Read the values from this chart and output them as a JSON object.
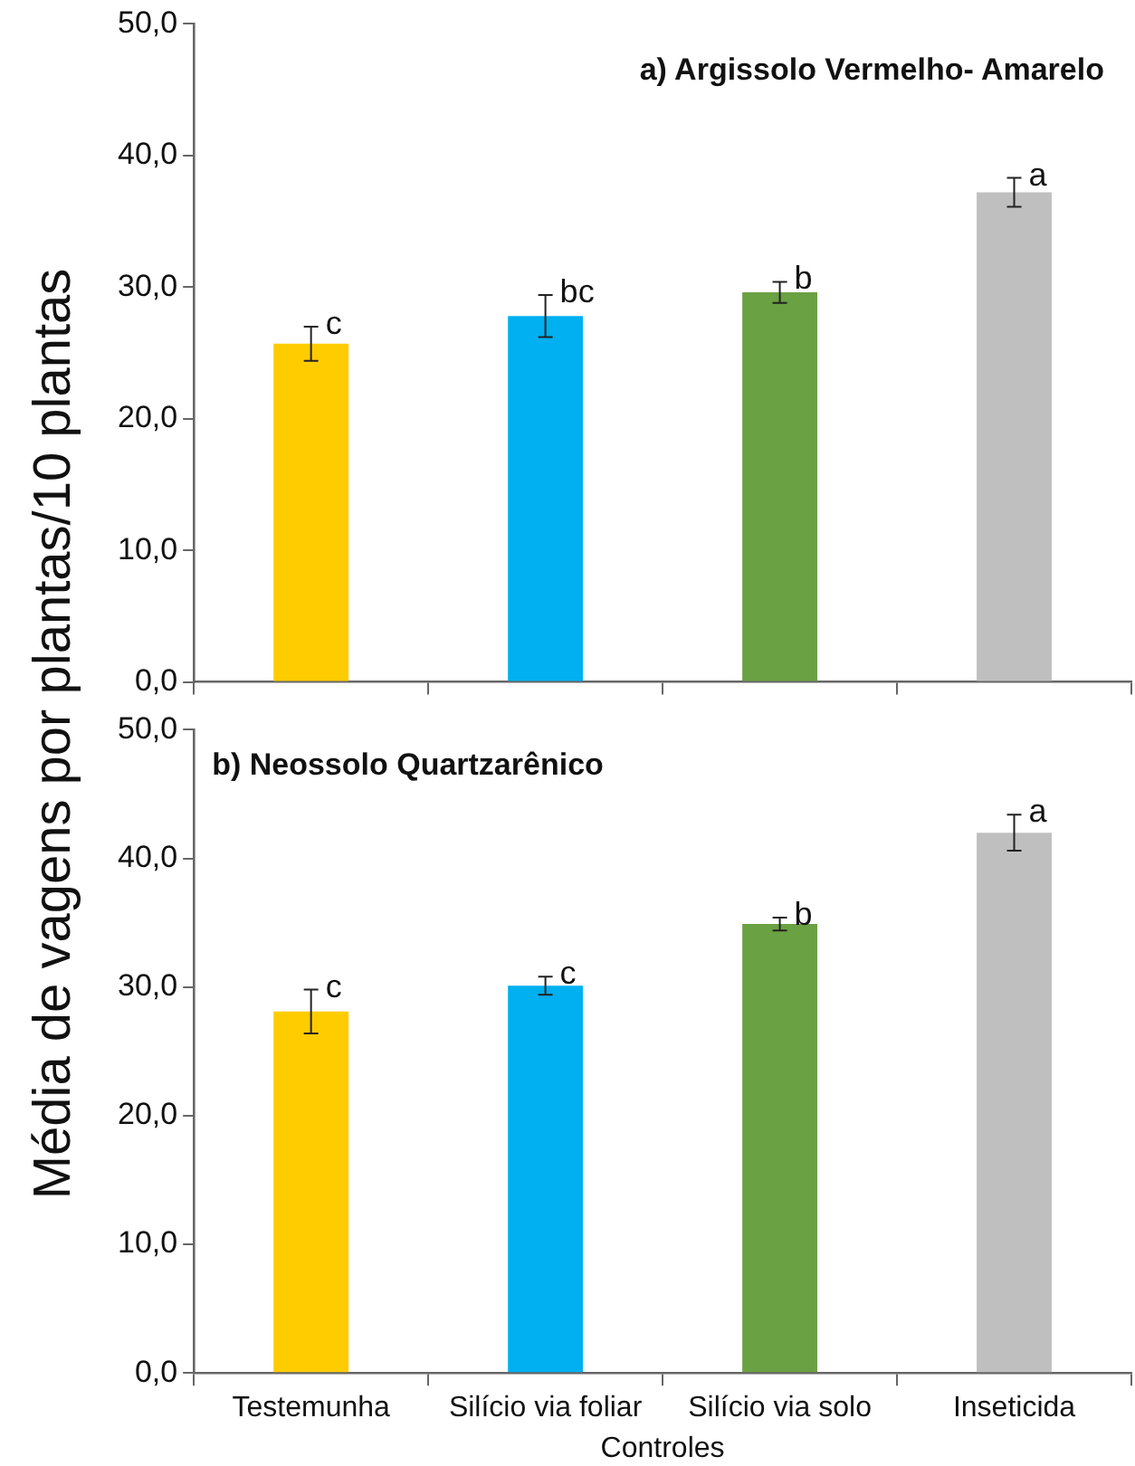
{
  "chart_data": [
    {
      "type": "bar",
      "title": "a) Argissolo Vermelho- Amarelo",
      "ylabel": "Média de vagens por plantas/10 plantas",
      "categories": [
        "Testemunha",
        "Silício via foliar",
        "Silício via solo",
        "Inseticida"
      ],
      "values": [
        25.7,
        27.8,
        29.6,
        37.2
      ],
      "errors": [
        1.3,
        1.6,
        0.8,
        1.1
      ],
      "colors": [
        "#ffcc00",
        "#00b0f0",
        "#6aa142",
        "#bfbfbf"
      ],
      "ylim": [
        0,
        50
      ],
      "yticks": [
        {
          "value": 0,
          "label": "0,0"
        },
        {
          "value": 10,
          "label": "10,0"
        },
        {
          "value": 20,
          "label": "20,0"
        },
        {
          "value": 30,
          "label": "30,0"
        },
        {
          "value": 40,
          "label": "40,0"
        },
        {
          "value": 50,
          "label": "50,0"
        }
      ],
      "annotations": [
        {
          "text": "c",
          "x": "Testemunha",
          "y": 27.0
        },
        {
          "text": "bc",
          "x": "Silício via foliar",
          "y": 29.4
        },
        {
          "text": "b",
          "x": "Silício via solo",
          "y": 30.4
        },
        {
          "text": "a",
          "x": "Inseticida",
          "y": 38.3
        }
      ],
      "tick_labels": "y",
      "grid": false,
      "legend": false
    },
    {
      "type": "bar",
      "title": "b) Neossolo Quartzarênico",
      "xlabel": "Controles",
      "categories": [
        "Testemunha",
        "Silício via foliar",
        "Silício via solo",
        "Inseticida"
      ],
      "values": [
        28.1,
        30.1,
        34.9,
        42.0
      ],
      "errors": [
        1.7,
        0.7,
        0.5,
        1.4
      ],
      "colors": [
        "#ffcc00",
        "#00b0f0",
        "#6aa142",
        "#bfbfbf"
      ],
      "ylim": [
        0,
        50
      ],
      "yticks": [
        {
          "value": 0,
          "label": "0,0"
        },
        {
          "value": 10,
          "label": "10,0"
        },
        {
          "value": 20,
          "label": "20,0"
        },
        {
          "value": 30,
          "label": "30,0"
        },
        {
          "value": 40,
          "label": "40,0"
        },
        {
          "value": 50,
          "label": "50,0"
        }
      ],
      "annotations": [
        {
          "text": "c",
          "x": "Testemunha",
          "y": 29.8
        },
        {
          "text": "c",
          "x": "Silício via foliar",
          "y": 30.8
        },
        {
          "text": "b",
          "x": "Silício via solo",
          "y": 35.4
        },
        {
          "text": "a",
          "x": "Inseticida",
          "y": 43.4
        }
      ],
      "grid": false,
      "legend": false
    }
  ]
}
